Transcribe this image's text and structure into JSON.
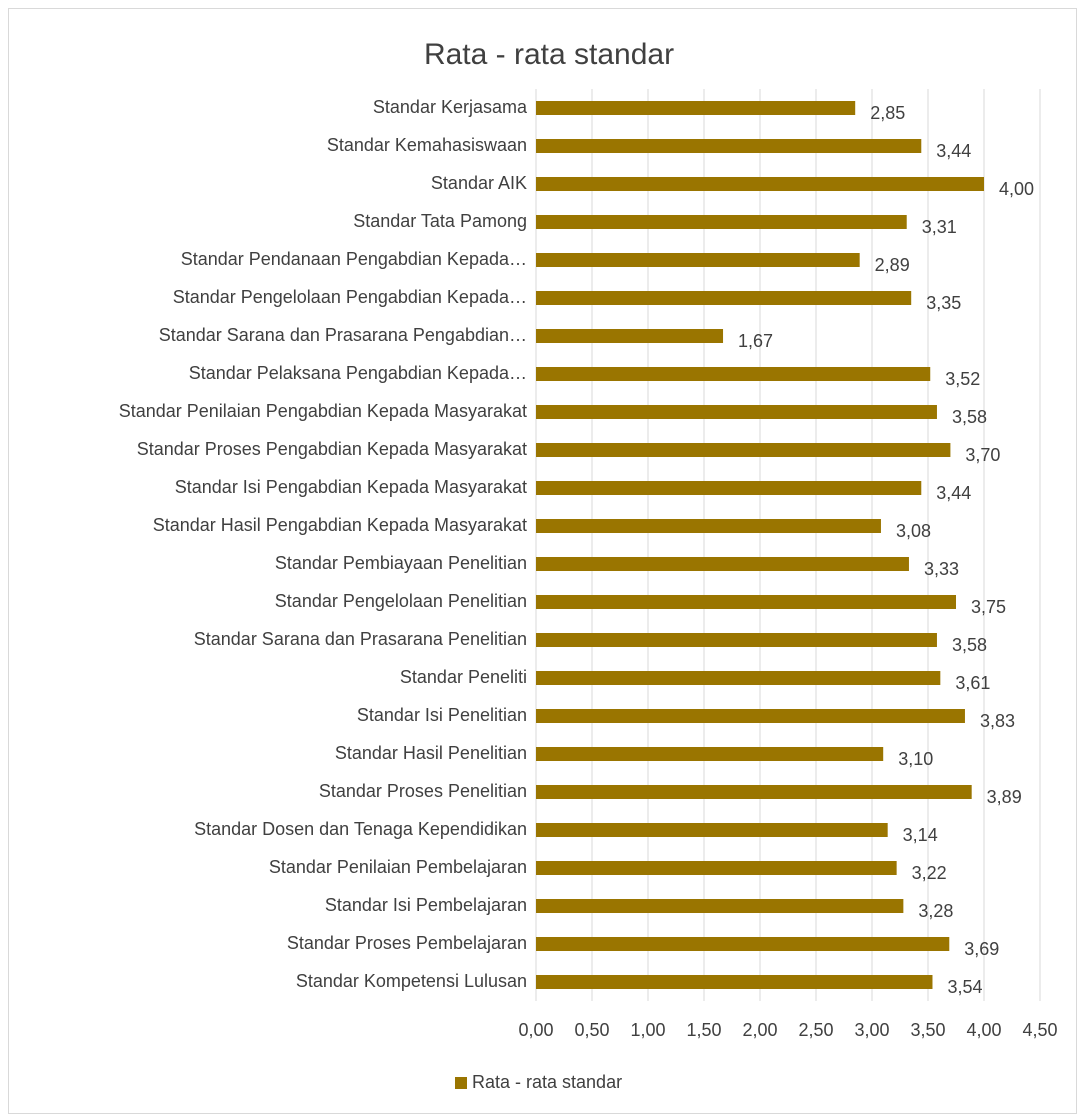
{
  "chart_data": {
    "type": "barh",
    "title": "Rata - rata standar",
    "categories": [
      "Standar Kerjasama",
      "Standar Kemahasiswaan",
      "Standar AIK",
      "Standar Tata Pamong",
      "Standar Pendanaan Pengabdian Kepada…",
      "Standar Pengelolaan Pengabdian Kepada…",
      "Standar Sarana dan Prasarana Pengabdian…",
      "Standar Pelaksana Pengabdian Kepada…",
      "Standar Penilaian Pengabdian Kepada Masyarakat",
      "Standar Proses Pengabdian Kepada Masyarakat",
      "Standar Isi Pengabdian Kepada Masyarakat",
      "Standar Hasil Pengabdian Kepada Masyarakat",
      "Standar Pembiayaan Penelitian",
      "Standar Pengelolaan Penelitian",
      "Standar Sarana dan Prasarana Penelitian",
      "Standar Peneliti",
      "Standar Isi Penelitian",
      "Standar Hasil Penelitian",
      "Standar Proses Penelitian",
      "Standar Dosen dan Tenaga Kependidikan",
      "Standar Penilaian Pembelajaran",
      "Standar Isi Pembelajaran",
      "Standar Proses Pembelajaran",
      "Standar Kompetensi Lulusan"
    ],
    "series": [
      {
        "name": "Rata - rata standar",
        "color": "#9a7500",
        "values": [
          2.85,
          3.44,
          4.0,
          3.31,
          2.89,
          3.35,
          1.67,
          3.52,
          3.58,
          3.7,
          3.44,
          3.08,
          3.33,
          3.75,
          3.58,
          3.61,
          3.83,
          3.1,
          3.89,
          3.14,
          3.22,
          3.28,
          3.69,
          3.54
        ],
        "value_labels": [
          "2,85",
          "3,44",
          "4,00",
          "3,31",
          "2,89",
          "3,35",
          "1,67",
          "3,52",
          "3,58",
          "3,70",
          "3,44",
          "3,08",
          "3,33",
          "3,75",
          "3,58",
          "3,61",
          "3,83",
          "3,10",
          "3,89",
          "3,14",
          "3,22",
          "3,28",
          "3,69",
          "3,54"
        ]
      }
    ],
    "xlim": [
      0,
      4.5
    ],
    "xticks": [
      {
        "value": 0,
        "label": "0,00"
      },
      {
        "value": 0.5,
        "label": "0,50"
      },
      {
        "value": 1,
        "label": "1,00"
      },
      {
        "value": 1.5,
        "label": "1,50"
      },
      {
        "value": 2,
        "label": "2,00"
      },
      {
        "value": 2.5,
        "label": "2,50"
      },
      {
        "value": 3,
        "label": "3,00"
      },
      {
        "value": 3.5,
        "label": "3,50"
      },
      {
        "value": 4,
        "label": "4,00"
      },
      {
        "value": 4.5,
        "label": "4,50"
      }
    ],
    "grid": true,
    "legend": "bottom"
  }
}
